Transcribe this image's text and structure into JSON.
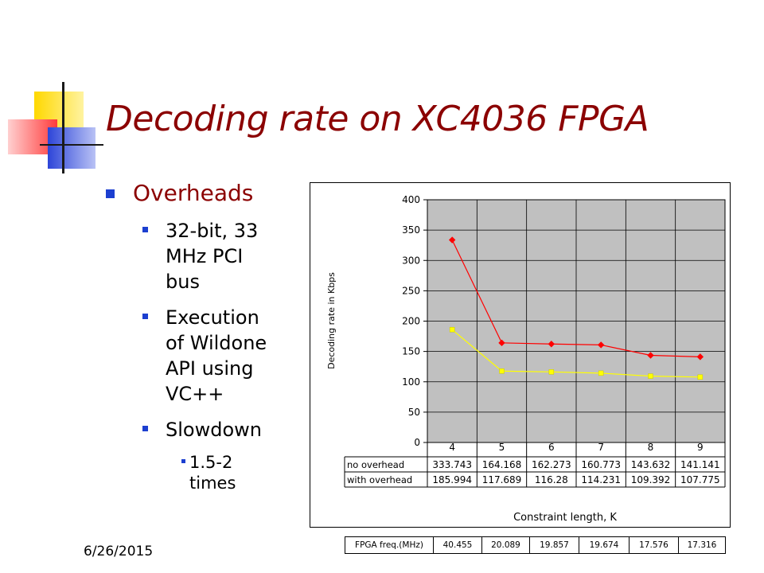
{
  "slide": {
    "title": "Decoding rate on XC4036 FPGA",
    "date": "6/26/2015",
    "bullets": {
      "level1": "Overheads",
      "items": [
        {
          "line1": "32-bit, 33",
          "line2": "MHz PCI",
          "line3": "bus"
        },
        {
          "line1": "Execution",
          "line2": "of Wildone",
          "line3": "API using",
          "line4": "VC++"
        },
        {
          "line1": "Slowdown"
        }
      ],
      "sub": {
        "line1": "1.5-2",
        "line2": "times"
      }
    }
  },
  "colors": {
    "title": "#8b0000",
    "bullet": "#1c3fd0",
    "plot_bg": "#c0c0c0",
    "series_no_overhead": "#ff0000",
    "series_with_overhead": "#ffff00"
  },
  "chart_data": {
    "type": "line",
    "categories": [
      "4",
      "5",
      "6",
      "7",
      "8",
      "9"
    ],
    "series": [
      {
        "name": "no overhead",
        "values": [
          333.743,
          164.168,
          162.273,
          160.773,
          143.632,
          141.141
        ],
        "color": "#ff0000",
        "marker": "diamond"
      },
      {
        "name": "with overhead",
        "values": [
          185.994,
          117.689,
          116.28,
          114.231,
          109.392,
          107.775
        ],
        "color": "#ffff00",
        "marker": "square"
      }
    ],
    "value_labels": {
      "no overhead": [
        "333.743",
        "164.168",
        "162.273",
        "160.773",
        "143.632",
        "141.141"
      ],
      "with overhead": [
        "185.994",
        "117.689",
        "116.28",
        "114.231",
        "109.392",
        "107.775"
      ]
    },
    "title": "",
    "xlabel": "Constraint length, K",
    "ylabel": "Decoding rate in Kbps",
    "ylim": [
      0,
      400
    ],
    "yticks": [
      "0",
      "50",
      "100",
      "150",
      "200",
      "250",
      "300",
      "350",
      "400"
    ],
    "grid": true,
    "legend": "data table below plot"
  },
  "freq_table": {
    "header": "FPGA freq.(MHz)",
    "values": [
      "40.455",
      "20.089",
      "19.857",
      "19.674",
      "17.576",
      "17.316"
    ]
  }
}
